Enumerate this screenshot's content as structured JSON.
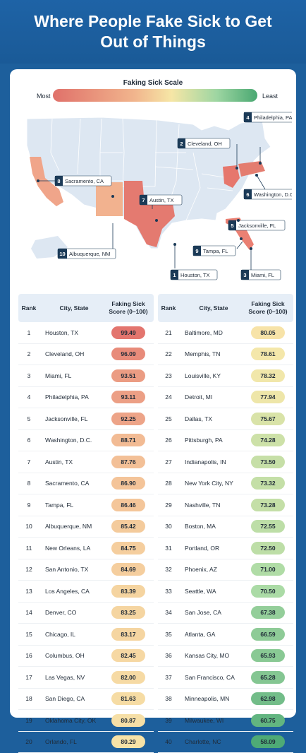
{
  "header": {
    "title": "Where People Fake Sick to Get Out of Things"
  },
  "scale": {
    "title": "Faking Sick Scale",
    "most": "Most",
    "least": "Least"
  },
  "map": {
    "callouts": [
      {
        "rank": "1",
        "label": "Houston, TX"
      },
      {
        "rank": "2",
        "label": "Cleveland, OH"
      },
      {
        "rank": "3",
        "label": "Miami, FL"
      },
      {
        "rank": "4",
        "label": "Philadelphia, PA"
      },
      {
        "rank": "5",
        "label": "Jacksonville, FL"
      },
      {
        "rank": "6",
        "label": "Washington, D.C."
      },
      {
        "rank": "7",
        "label": "Austin, TX"
      },
      {
        "rank": "8",
        "label": "Sacramento, CA"
      },
      {
        "rank": "9",
        "label": "Tampa, FL"
      },
      {
        "rank": "10",
        "label": "Albuquerque, NM"
      }
    ]
  },
  "table": {
    "headers": {
      "rank": "Rank",
      "city": "City, State",
      "score": "Faking Sick Score (0–100)"
    }
  },
  "chart_data": {
    "type": "table",
    "title": "Faking Sick Scale",
    "columns": [
      "Rank",
      "City, State",
      "Faking Sick Score (0–100)"
    ],
    "rows": [
      {
        "rank": 1,
        "city": "Houston, TX",
        "score": 99.49
      },
      {
        "rank": 2,
        "city": "Cleveland, OH",
        "score": 96.09
      },
      {
        "rank": 3,
        "city": "Miami, FL",
        "score": 93.51
      },
      {
        "rank": 4,
        "city": "Philadelphia, PA",
        "score": 93.11
      },
      {
        "rank": 5,
        "city": "Jacksonville, FL",
        "score": 92.25
      },
      {
        "rank": 6,
        "city": "Washington, D.C.",
        "score": 88.71
      },
      {
        "rank": 7,
        "city": "Austin, TX",
        "score": 87.76
      },
      {
        "rank": 8,
        "city": "Sacramento, CA",
        "score": 86.9
      },
      {
        "rank": 9,
        "city": "Tampa, FL",
        "score": 86.46
      },
      {
        "rank": 10,
        "city": "Albuquerque, NM",
        "score": 85.42
      },
      {
        "rank": 11,
        "city": "New Orleans, LA",
        "score": 84.75
      },
      {
        "rank": 12,
        "city": "San Antonio, TX",
        "score": 84.69
      },
      {
        "rank": 13,
        "city": "Los Angeles, CA",
        "score": 83.39
      },
      {
        "rank": 14,
        "city": "Denver, CO",
        "score": 83.25
      },
      {
        "rank": 15,
        "city": "Chicago, IL",
        "score": 83.17
      },
      {
        "rank": 16,
        "city": "Columbus, OH",
        "score": 82.45
      },
      {
        "rank": 17,
        "city": "Las Vegas, NV",
        "score": 82.0
      },
      {
        "rank": 18,
        "city": "San Diego, CA",
        "score": 81.63
      },
      {
        "rank": 19,
        "city": "Oklahoma City, OK",
        "score": 80.87
      },
      {
        "rank": 20,
        "city": "Orlando, FL",
        "score": 80.29
      },
      {
        "rank": 21,
        "city": "Baltimore, MD",
        "score": 80.05
      },
      {
        "rank": 22,
        "city": "Memphis, TN",
        "score": 78.61
      },
      {
        "rank": 23,
        "city": "Louisville, KY",
        "score": 78.32
      },
      {
        "rank": 24,
        "city": "Detroit, MI",
        "score": 77.94
      },
      {
        "rank": 25,
        "city": "Dallas, TX",
        "score": 75.67
      },
      {
        "rank": 26,
        "city": "Pittsburgh, PA",
        "score": 74.28
      },
      {
        "rank": 27,
        "city": "Indianapolis, IN",
        "score": 73.5
      },
      {
        "rank": 28,
        "city": "New York City, NY",
        "score": 73.32
      },
      {
        "rank": 29,
        "city": "Nashville, TN",
        "score": 73.28
      },
      {
        "rank": 30,
        "city": "Boston, MA",
        "score": 72.55
      },
      {
        "rank": 31,
        "city": "Portland, OR",
        "score": 72.5
      },
      {
        "rank": 32,
        "city": "Phoenix, AZ",
        "score": 71.0
      },
      {
        "rank": 33,
        "city": "Seattle, WA",
        "score": 70.5
      },
      {
        "rank": 34,
        "city": "San Jose, CA",
        "score": 67.38
      },
      {
        "rank": 35,
        "city": "Atlanta, GA",
        "score": 66.59
      },
      {
        "rank": 36,
        "city": "Kansas City, MO",
        "score": 65.93
      },
      {
        "rank": 37,
        "city": "San Francisco, CA",
        "score": 65.28
      },
      {
        "rank": 38,
        "city": "Minneapolis, MN",
        "score": 62.98
      },
      {
        "rank": 39,
        "city": "Milwaukee, WI",
        "score": 60.75
      },
      {
        "rank": 40,
        "city": "Charlotte, NC",
        "score": 58.09
      }
    ],
    "color_scale": {
      "low_label": "Least",
      "high_label": "Most",
      "high_color": "#e0716a",
      "mid_color": "#f6e6a6",
      "low_color": "#4aa872"
    }
  },
  "colors": {
    "brand": "#1a5a97",
    "callout_badge": "#1b3a57"
  }
}
